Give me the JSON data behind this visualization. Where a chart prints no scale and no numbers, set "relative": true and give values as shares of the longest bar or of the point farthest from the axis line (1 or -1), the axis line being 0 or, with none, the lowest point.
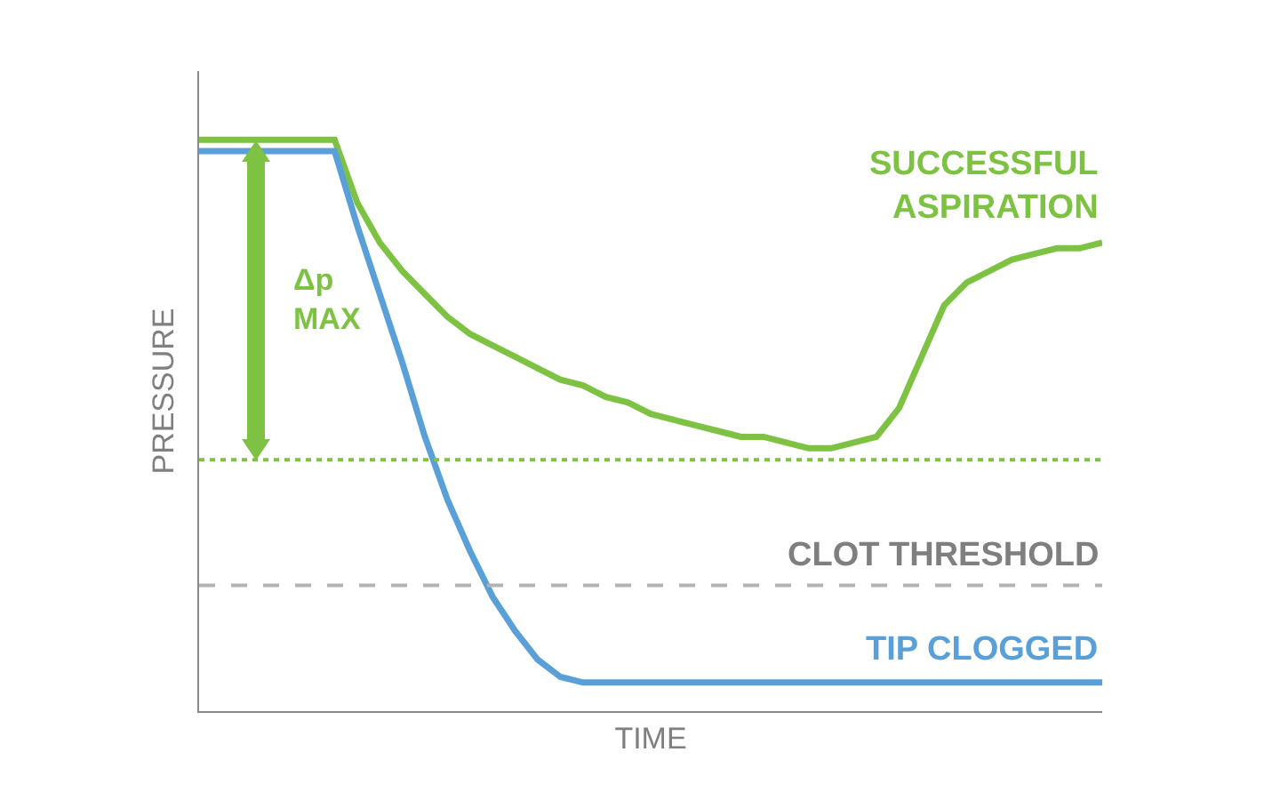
{
  "chart_data": {
    "type": "line",
    "relative": true,
    "xlabel": "TIME",
    "ylabel": "PRESSURE",
    "categories": [
      null,
      null,
      null,
      null,
      null,
      null,
      null,
      null,
      null,
      null,
      null,
      null,
      null,
      null,
      null,
      null,
      null,
      null,
      null,
      null,
      null,
      null,
      null,
      null,
      null,
      null,
      null,
      null,
      null,
      null,
      null,
      null,
      null,
      null,
      null,
      null,
      null,
      null,
      null,
      null,
      null
    ],
    "series": [
      {
        "name": "SUCCESSFUL ASPIRATION",
        "color": "#7dc242",
        "values": [
          1,
          1,
          1,
          1,
          1,
          1,
          1,
          0.89,
          0.82,
          0.77,
          0.73,
          0.69,
          0.66,
          0.64,
          0.62,
          0.6,
          0.58,
          0.57,
          0.55,
          0.54,
          0.52,
          0.51,
          0.5,
          0.49,
          0.48,
          0.48,
          0.47,
          0.46,
          0.46,
          0.47,
          0.48,
          0.53,
          0.62,
          0.71,
          0.75,
          0.77,
          0.79,
          0.8,
          0.81,
          0.81,
          0.82
        ]
      },
      {
        "name": "TIP CLOGGED",
        "color": "#5aa0d8",
        "values": [
          0.98,
          0.98,
          0.98,
          0.98,
          0.98,
          0.98,
          0.98,
          0.85,
          0.73,
          0.61,
          0.48,
          0.37,
          0.28,
          0.2,
          0.14,
          0.09,
          0.06,
          0.05,
          0.05,
          0.05,
          0.05,
          0.05,
          0.05,
          0.05,
          0.05,
          0.05,
          0.05,
          0.05,
          0.05,
          0.05,
          0.05,
          0.05,
          0.05,
          0.05,
          0.05,
          0.05,
          0.05,
          0.05,
          0.05,
          0.05,
          0.05
        ]
      }
    ],
    "ref_lines": [
      {
        "axis": "y",
        "value": 0.44,
        "label": null,
        "color": "#7dc242",
        "line_style": "dotted"
      },
      {
        "axis": "y",
        "value": 0.22,
        "label": "CLOT THRESHOLD",
        "color": "#b3b3b3",
        "line_style": "dashed"
      }
    ],
    "annotations": [
      "Δp MAX"
    ],
    "legend": false,
    "marker": "none",
    "line_style": "solid"
  }
}
